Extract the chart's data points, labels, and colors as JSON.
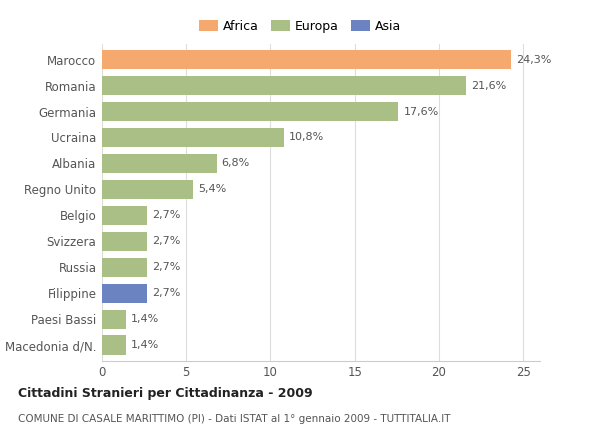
{
  "countries": [
    "Marocco",
    "Romania",
    "Germania",
    "Ucraina",
    "Albania",
    "Regno Unito",
    "Belgio",
    "Svizzera",
    "Russia",
    "Filippine",
    "Paesi Bassi",
    "Macedonia d/N."
  ],
  "values": [
    24.3,
    21.6,
    17.6,
    10.8,
    6.8,
    5.4,
    2.7,
    2.7,
    2.7,
    2.7,
    1.4,
    1.4
  ],
  "labels": [
    "24,3%",
    "21,6%",
    "17,6%",
    "10,8%",
    "6,8%",
    "5,4%",
    "2,7%",
    "2,7%",
    "2,7%",
    "2,7%",
    "1,4%",
    "1,4%"
  ],
  "continents": [
    "Africa",
    "Europa",
    "Europa",
    "Europa",
    "Europa",
    "Europa",
    "Europa",
    "Europa",
    "Europa",
    "Asia",
    "Europa",
    "Europa"
  ],
  "colors": {
    "Africa": "#F5A96E",
    "Europa": "#AABF85",
    "Asia": "#6B83C0"
  },
  "legend_labels": [
    "Africa",
    "Europa",
    "Asia"
  ],
  "xlim": [
    0,
    26
  ],
  "xticks": [
    0,
    5,
    10,
    15,
    20,
    25
  ],
  "title": "Cittadini Stranieri per Cittadinanza - 2009",
  "subtitle": "COMUNE DI CASALE MARITTIMO (PI) - Dati ISTAT al 1° gennaio 2009 - TUTTITALIA.IT",
  "background_color": "#ffffff",
  "bar_height": 0.75
}
